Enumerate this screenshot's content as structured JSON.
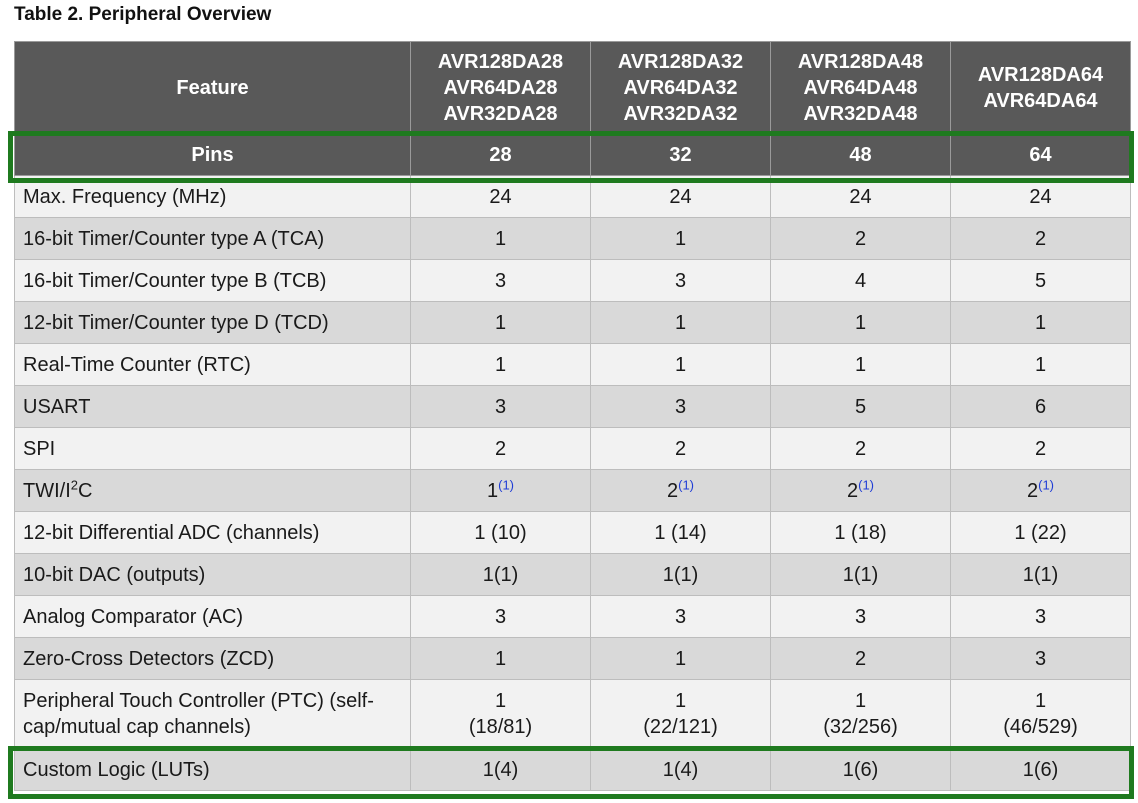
{
  "caption": "Table 2.  Peripheral Overview",
  "header": {
    "feature_label": "Feature",
    "models": [
      [
        "AVR128DA28",
        "AVR64DA28",
        "AVR32DA28"
      ],
      [
        "AVR128DA32",
        "AVR64DA32",
        "AVR32DA32"
      ],
      [
        "AVR128DA48",
        "AVR64DA48",
        "AVR32DA48"
      ],
      [
        "AVR128DA64",
        "AVR64DA64"
      ]
    ],
    "pins_label": "Pins",
    "pins": [
      "28",
      "32",
      "48",
      "64"
    ]
  },
  "rows": [
    {
      "feature": "Max. Frequency (MHz)",
      "values": [
        "24",
        "24",
        "24",
        "24"
      ]
    },
    {
      "feature": "16-bit Timer/Counter type A (TCA)",
      "values": [
        "1",
        "1",
        "2",
        "2"
      ]
    },
    {
      "feature": "16-bit Timer/Counter type B (TCB)",
      "values": [
        "3",
        "3",
        "4",
        "5"
      ]
    },
    {
      "feature": "12-bit Timer/Counter type D (TCD)",
      "values": [
        "1",
        "1",
        "1",
        "1"
      ]
    },
    {
      "feature": "Real-Time Counter (RTC)",
      "values": [
        "1",
        "1",
        "1",
        "1"
      ]
    },
    {
      "feature": "USART",
      "values": [
        "3",
        "3",
        "5",
        "6"
      ]
    },
    {
      "feature": "SPI",
      "values": [
        "2",
        "2",
        "2",
        "2"
      ]
    },
    {
      "feature_parts": [
        "TWI/I",
        "2",
        "C"
      ],
      "values": [
        "1",
        "2",
        "2",
        "2"
      ],
      "note_ref": "(1)"
    },
    {
      "feature": "12-bit Differential ADC (channels)",
      "values": [
        "1 (10)",
        "1 (14)",
        "1 (18)",
        "1 (22)"
      ]
    },
    {
      "feature": "10-bit DAC (outputs)",
      "values": [
        "1(1)",
        "1(1)",
        "1(1)",
        "1(1)"
      ]
    },
    {
      "feature": "Analog Comparator (AC)",
      "values": [
        "3",
        "3",
        "3",
        "3"
      ]
    },
    {
      "feature": "Zero-Cross Detectors (ZCD)",
      "values": [
        "1",
        "1",
        "2",
        "3"
      ]
    },
    {
      "feature_lines": [
        "Peripheral Touch Controller (PTC) (self-",
        "cap/mutual cap channels)"
      ],
      "values_lines": [
        [
          "1",
          "(18/81)"
        ],
        [
          "1",
          "(22/121)"
        ],
        [
          "1",
          "(32/256)"
        ],
        [
          "1",
          "(46/529)"
        ]
      ]
    },
    {
      "feature": "Custom Logic (LUTs)",
      "values": [
        "1(4)",
        "1(4)",
        "1(6)",
        "1(6)"
      ]
    }
  ]
}
